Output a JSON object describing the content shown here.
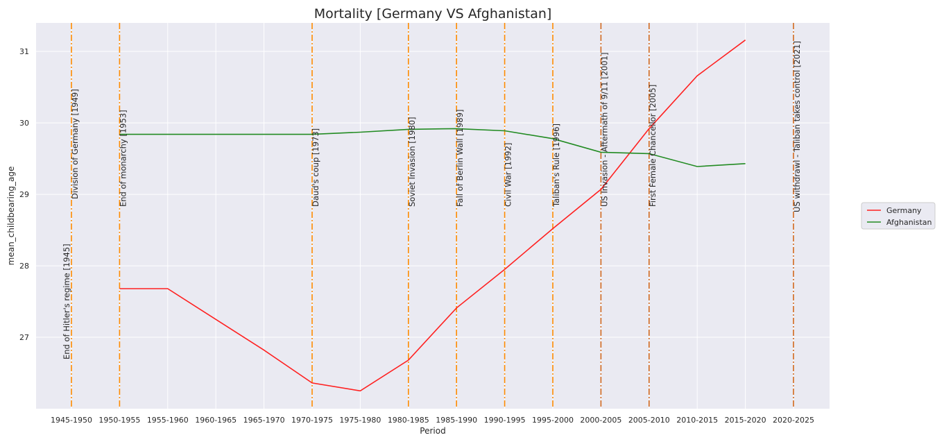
{
  "chart_data": {
    "type": "line",
    "title": "Mortality [Germany VS Afghanistan]",
    "xlabel": "Period",
    "ylabel": "mean_childbearing_age",
    "categories": [
      "1945-1950",
      "1950-1955",
      "1955-1960",
      "1960-1965",
      "1965-1970",
      "1970-1975",
      "1975-1980",
      "1980-1985",
      "1985-1990",
      "1990-1995",
      "1995-2000",
      "2000-2005",
      "2005-2010",
      "2010-2015",
      "2015-2020",
      "2020-2025"
    ],
    "yticks": [
      "27",
      "28",
      "29",
      "30",
      "31"
    ],
    "ylim": [
      26.0,
      31.4
    ],
    "grid": true,
    "legend_position": "right",
    "series": [
      {
        "name": "Germany",
        "color": "#ff2020",
        "values": [
          null,
          27.68,
          27.68,
          27.25,
          26.82,
          26.36,
          26.25,
          26.68,
          27.41,
          27.95,
          28.52,
          29.07,
          29.92,
          30.66,
          31.16,
          null
        ]
      },
      {
        "name": "Afghanistan",
        "color": "#228b22",
        "values": [
          null,
          29.84,
          29.84,
          29.84,
          29.84,
          29.84,
          29.87,
          29.91,
          29.92,
          29.89,
          29.78,
          29.59,
          29.57,
          29.39,
          29.43,
          null
        ]
      }
    ],
    "annotations": [
      {
        "category": "1945-1950",
        "label": "End of Hitler's regime [1945]",
        "color": "#ff8c00"
      },
      {
        "category": "1945-1950",
        "label": "Division of Germany [1949]",
        "color": "#ff8c00"
      },
      {
        "category": "1950-1955",
        "label": "End of monarchy [1953]",
        "color": "#ff8c00"
      },
      {
        "category": "1970-1975",
        "label": "Daud's coup [1973]",
        "color": "#ff8c00"
      },
      {
        "category": "1980-1985",
        "label": "Soviet Invasion [1980]",
        "color": "#ff8c00"
      },
      {
        "category": "1985-1990",
        "label": "Fall of Berlin Wall [1989]",
        "color": "#ff8c00"
      },
      {
        "category": "1990-1995",
        "label": "Civil War [1992]",
        "color": "#ff8c00"
      },
      {
        "category": "1995-2000",
        "label": "Taliban's Rule [1996]",
        "color": "#ff8c00"
      },
      {
        "category": "2000-2005",
        "label": "US Invasion - Aftermath of 9/11 [2001]",
        "color": "#d2691e"
      },
      {
        "category": "2005-2010",
        "label": "First Female Chancellor [2005]",
        "color": "#d2691e"
      },
      {
        "category": "2020-2025",
        "label": "US withdrawl - Taliban takes control [2021]",
        "color": "#d2691e"
      }
    ]
  }
}
